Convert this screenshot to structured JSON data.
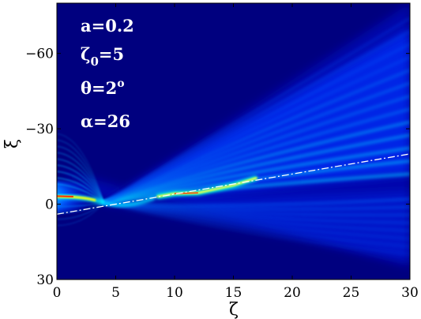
{
  "chart_data": {
    "type": "heatmap",
    "title": "",
    "xlabel": "ζ",
    "ylabel": "ξ",
    "xlim": [
      0,
      30
    ],
    "ylim": [
      30,
      -80
    ],
    "y_reversed": true,
    "colormap": "jet",
    "colors": {
      "background": "#00007f",
      "low": "#0000ff",
      "mid": "#00ffff",
      "high": "#ffff00",
      "peak": "#ff0000",
      "reference_line": "#ffffff"
    },
    "x_ticks": [
      {
        "value": 0,
        "label": "0"
      },
      {
        "value": 5,
        "label": "5"
      },
      {
        "value": 10,
        "label": "10"
      },
      {
        "value": 15,
        "label": "15"
      },
      {
        "value": 20,
        "label": "20"
      },
      {
        "value": 25,
        "label": "25"
      },
      {
        "value": 30,
        "label": "30"
      }
    ],
    "y_ticks": [
      {
        "value": -60,
        "label": "−60"
      },
      {
        "value": -30,
        "label": "−30"
      },
      {
        "value": 0,
        "label": "0"
      },
      {
        "value": 30,
        "label": "30"
      }
    ],
    "annotations": [
      {
        "id": "a",
        "text": "a=0.2"
      },
      {
        "id": "zeta0",
        "base": "ζ",
        "sub": "0",
        "rest": "=5"
      },
      {
        "id": "theta",
        "base": "θ=2",
        "sup": "o"
      },
      {
        "id": "alpha",
        "text": "α=26"
      }
    ],
    "reference_line": {
      "style": "dash-dot",
      "points": [
        [
          0,
          4
        ],
        [
          30,
          -20
        ]
      ]
    },
    "beam_features": [
      {
        "kind": "source",
        "zeta": 0,
        "xi": -3
      },
      {
        "kind": "focus",
        "zeta": 4,
        "xi": -0.5
      },
      {
        "kind": "bright-segment",
        "points": [
          [
            8.5,
            -3
          ],
          [
            10,
            -4.2
          ],
          [
            12,
            -4.5
          ],
          [
            15,
            -7.5
          ],
          [
            17,
            -10.5
          ]
        ]
      },
      {
        "kind": "fringe-band",
        "direction": "upper",
        "points": [
          [
            4,
            -1
          ],
          [
            10,
            -20
          ],
          [
            20,
            -45
          ],
          [
            30,
            -70
          ]
        ]
      },
      {
        "kind": "fringe-band",
        "direction": "lower",
        "points": [
          [
            4,
            1
          ],
          [
            15,
            8
          ],
          [
            30,
            16
          ]
        ]
      }
    ]
  }
}
